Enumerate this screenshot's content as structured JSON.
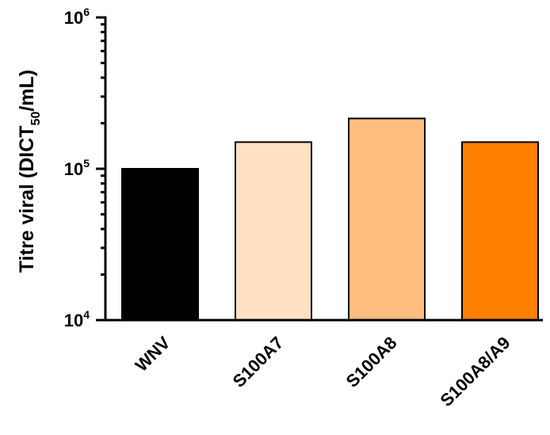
{
  "chart_data": {
    "type": "bar",
    "categories": [
      "WNV",
      "S100A7",
      "S100A8",
      "S100A8/A9"
    ],
    "values": [
      100000,
      150000,
      215000,
      150000
    ],
    "colors": [
      "#000000",
      "#FFE2C2",
      "#FFBE80",
      "#FF7F00"
    ],
    "ylabel_main": "Titre viral (DICT",
    "ylabel_sub": "50",
    "ylabel_end": "/mL)",
    "yscale": "log",
    "ylim": [
      10000,
      1000000
    ],
    "yticks": [
      {
        "value": 10000,
        "base": "10",
        "exp": "4"
      },
      {
        "value": 100000,
        "base": "10",
        "exp": "5"
      },
      {
        "value": 1000000,
        "base": "10",
        "exp": "6"
      }
    ],
    "grid": false,
    "legend": "none"
  }
}
